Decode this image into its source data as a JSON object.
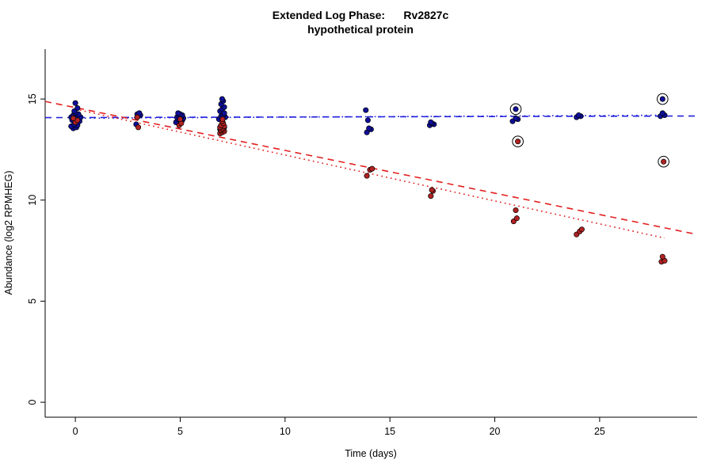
{
  "chart_data": {
    "type": "scatter",
    "title": "Extended Log Phase:      Rv2827c",
    "subtitle": "hypothetical protein",
    "xlabel": "Time  (days)",
    "ylabel": "Abundance  (log2 RPMHEG)",
    "xlim": [
      -1.44,
      29.65
    ],
    "ylim": [
      -0.74,
      17.47
    ],
    "xticks": [
      0,
      5,
      10,
      15,
      20,
      25
    ],
    "yticks": [
      0,
      5,
      10,
      15
    ],
    "grid": false,
    "legend": "none",
    "series": [
      {
        "name": "blue",
        "color": "#0f0f9a",
        "points": [
          [
            -0.1,
            13.55
          ],
          [
            0.05,
            13.6
          ],
          [
            -0.2,
            13.65
          ],
          [
            0.1,
            13.7
          ],
          [
            -0.05,
            13.75
          ],
          [
            0.2,
            13.9
          ],
          [
            -0.15,
            13.95
          ],
          [
            0,
            14
          ],
          [
            0.1,
            14.05
          ],
          [
            -0.2,
            14.1
          ],
          [
            0.25,
            14.1
          ],
          [
            0.05,
            14.15
          ],
          [
            -0.1,
            14.2
          ],
          [
            0.15,
            14.25
          ],
          [
            0,
            14.3
          ],
          [
            -0.05,
            14.4
          ],
          [
            0.1,
            14.55
          ],
          [
            0,
            14.8
          ],
          [
            2.9,
            13.75
          ],
          [
            3,
            14.15
          ],
          [
            3.1,
            14.2
          ],
          [
            2.95,
            14.25
          ],
          [
            3.05,
            14.3
          ],
          [
            4.8,
            13.85
          ],
          [
            5.1,
            13.95
          ],
          [
            4.9,
            14
          ],
          [
            5,
            14.05
          ],
          [
            5.15,
            14.05
          ],
          [
            4.85,
            14.1
          ],
          [
            5.05,
            14.1
          ],
          [
            4.95,
            14.15
          ],
          [
            5.1,
            14.2
          ],
          [
            5,
            14.25
          ],
          [
            4.9,
            14.3
          ],
          [
            6.9,
            13.5
          ],
          [
            7.1,
            13.6
          ],
          [
            7,
            13.9
          ],
          [
            6.85,
            14
          ],
          [
            7.15,
            14.1
          ],
          [
            6.95,
            14.15
          ],
          [
            7.05,
            14.2
          ],
          [
            7.1,
            14.3
          ],
          [
            6.9,
            14.4
          ],
          [
            7,
            14.5
          ],
          [
            7.1,
            14.6
          ],
          [
            6.95,
            14.75
          ],
          [
            7.05,
            14.9
          ],
          [
            7,
            15
          ],
          [
            13.9,
            13.35
          ],
          [
            14.1,
            13.5
          ],
          [
            14,
            13.55
          ],
          [
            13.95,
            13.95
          ],
          [
            13.85,
            14.45
          ],
          [
            16.9,
            13.7
          ],
          [
            17.1,
            13.75
          ],
          [
            17,
            13.8
          ],
          [
            16.95,
            13.85
          ],
          [
            20.85,
            13.9
          ],
          [
            21.1,
            14
          ],
          [
            21,
            14.05
          ],
          [
            23.9,
            14.1
          ],
          [
            24.1,
            14.15
          ],
          [
            24,
            14.2
          ],
          [
            27.9,
            14.15
          ],
          [
            28.1,
            14.2
          ],
          [
            28,
            14.3
          ]
        ]
      },
      {
        "name": "red",
        "color": "#b22222",
        "points": [
          [
            0,
            13.85
          ],
          [
            0.1,
            13.95
          ],
          [
            -0.1,
            14.05
          ],
          [
            3,
            13.6
          ],
          [
            2.95,
            14.1
          ],
          [
            4.95,
            13.7
          ],
          [
            5.05,
            13.8
          ],
          [
            5,
            14
          ],
          [
            6.9,
            13.3
          ],
          [
            7,
            13.35
          ],
          [
            7.1,
            13.4
          ],
          [
            6.95,
            13.45
          ],
          [
            7.05,
            13.5
          ],
          [
            7,
            13.55
          ],
          [
            6.9,
            13.6
          ],
          [
            7.1,
            13.65
          ],
          [
            6.95,
            13.7
          ],
          [
            7.05,
            13.8
          ],
          [
            7,
            13.9
          ],
          [
            7.02,
            14
          ],
          [
            13.9,
            11.2
          ],
          [
            14.05,
            11.5
          ],
          [
            14.15,
            11.55
          ],
          [
            16.95,
            10.2
          ],
          [
            17.05,
            10.45
          ],
          [
            17,
            10.5
          ],
          [
            20.9,
            8.95
          ],
          [
            21.05,
            9.1
          ],
          [
            21,
            9.5
          ],
          [
            23.9,
            8.3
          ],
          [
            24.05,
            8.45
          ],
          [
            24.15,
            8.55
          ],
          [
            27.95,
            6.95
          ],
          [
            28.1,
            7
          ],
          [
            28,
            7.2
          ]
        ]
      }
    ],
    "outliers_circled": [
      {
        "series": "blue",
        "x": 21.0,
        "y": 14.5
      },
      {
        "series": "red",
        "x": 21.1,
        "y": 12.9
      },
      {
        "series": "blue",
        "x": 28.0,
        "y": 15.0
      },
      {
        "series": "red",
        "x": 28.05,
        "y": 11.9
      }
    ],
    "trend_lines": [
      {
        "name": "blue-dashed",
        "series": "blue",
        "style": "long-dash",
        "color": "#2121de",
        "x1": -1.44,
        "y1": 14.08,
        "x2": 29.65,
        "y2": 14.16
      },
      {
        "name": "blue-dotted",
        "series": "blue",
        "style": "dotted",
        "color": "#2121de",
        "x1": 0,
        "y1": 14.05,
        "x2": 28.1,
        "y2": 14.2
      },
      {
        "name": "red-dashed",
        "series": "red",
        "style": "long-dash",
        "color": "#e32020",
        "x1": -1.44,
        "y1": 14.88,
        "x2": 29.65,
        "y2": 8.3
      },
      {
        "name": "red-dotted",
        "series": "red",
        "style": "dotted",
        "color": "#e32020",
        "x1": 0,
        "y1": 14.5,
        "x2": 28.1,
        "y2": 8.12
      }
    ]
  }
}
